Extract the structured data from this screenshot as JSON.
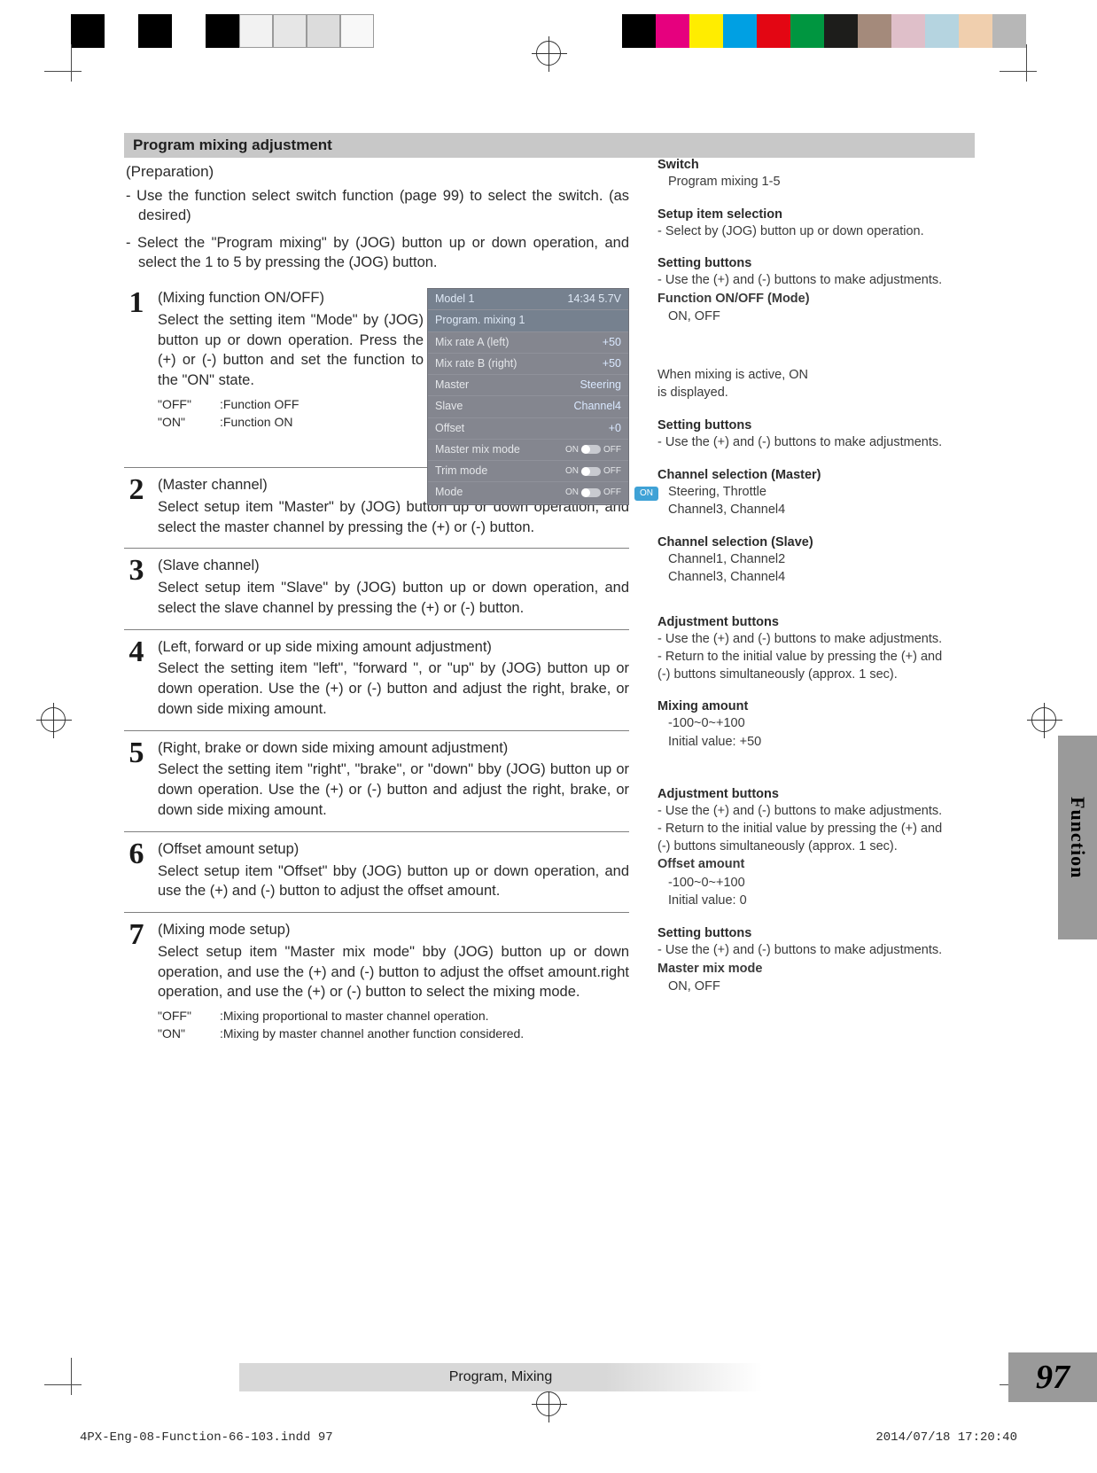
{
  "colorbar_left": [
    "#000000",
    "#ffffff",
    "#000000",
    "#ffffff",
    "#000000",
    "#f2f2f2",
    "#e6e6e6",
    "#dcdcdc",
    "#f8f8f8"
  ],
  "colorbar_right": [
    "#000000",
    "#e6007e",
    "#ffed00",
    "#00a0e3",
    "#e30613",
    "#009640",
    "#1d1d1b",
    "#a48a7b",
    "#dfbfc9",
    "#b5d4e0",
    "#f0cfae",
    "#b7b7b7"
  ],
  "section_title": "Program mixing adjustment",
  "preparation_label": "(Preparation)",
  "prep_items": [
    "- Use the function select switch function (page 99) to select the switch. (as desired)",
    "- Select the \"Program mixing\" by (JOG) button up or down operation, and select the 1 to 5 by pressing the (JOG) button."
  ],
  "steps": [
    {
      "num": "1",
      "head": "(Mixing function ON/OFF)",
      "body": "Select the setting item \"Mode\" by (JOG) button up or down operation.  Press the (+) or (-) button and set the function to the \"ON\" state.",
      "kv": [
        {
          "k": "\"OFF\"",
          "v": ":Function OFF"
        },
        {
          "k": "\"ON\"",
          "v": ":Function ON"
        }
      ]
    },
    {
      "num": "2",
      "head": "(Master channel)",
      "body": "Select setup item \"Master\" by (JOG) button up or down operation, and select the master channel by pressing the (+) or (-) button."
    },
    {
      "num": "3",
      "head": "(Slave channel)",
      "body": "Select setup item \"Slave\" by (JOG) button up or down operation, and select the slave channel by pressing the (+) or (-) button."
    },
    {
      "num": "4",
      "head": "(Left, forward or up side mixing amount adjustment)",
      "body": "Select the setting item \"left\", \"forward \", or \"up\" by (JOG) button up or down operation. Use the (+) or (-) button and adjust the right, brake, or down side mixing amount."
    },
    {
      "num": "5",
      "head": "(Right, brake or down side mixing amount adjustment)",
      "body": "Select the setting item \"right\", \"brake\", or \"down\" bby (JOG) button up or down operation. Use the (+) or (-) button and adjust the right, brake, or down side mixing amount."
    },
    {
      "num": "6",
      "head": "(Offset amount setup)",
      "body": "Select setup item \"Offset\" bby (JOG) button up or down operation, and use the (+) and (-) button to adjust the offset amount."
    },
    {
      "num": "7",
      "head": "(Mixing mode setup)",
      "body": "Select setup item \"Master mix mode\" bby (JOG) button up or down operation, and use the (+) and (-) button to adjust the offset amount.right operation, and use the (+) or (-) button to select the mixing mode.",
      "kv": [
        {
          "k": "\"OFF\"",
          "v": ":Mixing proportional to master channel operation."
        },
        {
          "k": "\"ON\"",
          "v": ":Mixing by master channel another function considered."
        }
      ]
    }
  ],
  "lcd": {
    "title_left": "Model 1",
    "title_right": "14:34 5.7V",
    "subtitle": "Program. mixing 1",
    "rows": [
      {
        "l": "Mix rate A (left)",
        "r": "+50"
      },
      {
        "l": "Mix rate B (right)",
        "r": "+50"
      },
      {
        "l": "Master",
        "r": "Steering"
      },
      {
        "l": "Slave",
        "r": "Channel4"
      },
      {
        "l": "Offset",
        "r": "+0"
      }
    ],
    "toggles": [
      {
        "l": "Master mix mode",
        "on": "ON",
        "off": "OFF"
      },
      {
        "l": "Trim mode",
        "on": "ON",
        "off": "OFF"
      },
      {
        "l": "Mode",
        "on": "ON",
        "off": "OFF"
      }
    ],
    "badge": "ON"
  },
  "lcd_note_line1": "When mixing is active, ON",
  "lcd_note_line2": "is displayed.",
  "sidebar_groups": [
    {
      "title": "Switch",
      "lines": [
        {
          "t": "Program mixing 1-5",
          "indent": true
        }
      ]
    },
    {
      "title": "Setup item selection",
      "lines": [
        {
          "t": "- Select by (JOG) button up or down operation."
        }
      ]
    },
    {
      "title": "Setting buttons",
      "lines": [
        {
          "t": "- Use the (+) and (-) buttons to make adjustments."
        },
        {
          "t": "Function ON/OFF (Mode)",
          "bold": true
        },
        {
          "t": "ON, OFF",
          "indent": true
        }
      ]
    },
    {
      "title": "Setting buttons",
      "lines": [
        {
          "t": "- Use the (+) and (-) buttons to make adjustments."
        }
      ]
    },
    {
      "title": "Channel selection (Master)",
      "lines": [
        {
          "t": "Steering, Throttle",
          "indent": true
        },
        {
          "t": "Channel3, Channel4",
          "indent": true
        }
      ]
    },
    {
      "title": "Channel selection (Slave)",
      "lines": [
        {
          "t": "Channel1, Channel2",
          "indent": true
        },
        {
          "t": "Channel3, Channel4",
          "indent": true
        }
      ]
    },
    {
      "title": "Adjustment buttons",
      "lines": [
        {
          "t": "- Use the (+) and (-) buttons to make adjustments."
        },
        {
          "t": "- Return to the initial value by pressing the (+) and (-) buttons simultaneously (approx. 1 sec)."
        }
      ]
    },
    {
      "title": "Mixing amount",
      "lines": [
        {
          "t": "-100~0~+100",
          "indent": true
        },
        {
          "t": "Initial value: +50",
          "indent": true
        }
      ]
    },
    {
      "title": "Adjustment buttons",
      "lines": [
        {
          "t": "- Use the (+) and (-) buttons to make adjustments."
        },
        {
          "t": "- Return to the initial value by pressing the (+) and (-) buttons simultaneously (approx. 1 sec)."
        },
        {
          "t": "Offset amount",
          "bold": true
        },
        {
          "t": "-100~0~+100",
          "indent": true
        },
        {
          "t": "Initial value: 0",
          "indent": true
        }
      ]
    },
    {
      "title": "Setting buttons",
      "lines": [
        {
          "t": "- Use the (+) and (-) buttons to make adjustments."
        },
        {
          "t": "Master mix mode",
          "bold": true
        },
        {
          "t": "ON, OFF",
          "indent": true
        }
      ]
    }
  ],
  "side_tab_label": "Function",
  "footer_title": "Program, Mixing",
  "page_num": "97",
  "footer_file": "4PX-Eng-08-Function-66-103.indd   97",
  "footer_date": "2014/07/18   17:20:40"
}
